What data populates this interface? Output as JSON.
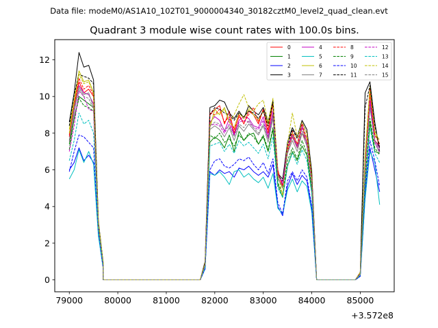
{
  "figure": {
    "suptitle": "Data file: modeM0/AS1A10_102T01_9000004340_30182cztM0_level2_quad_clean.evt"
  },
  "chart_data": {
    "type": "line",
    "title": "Quadrant 3 module wise count rates with 100.0s bins.",
    "xlabel": "",
    "ylabel": "",
    "x_offset_label": "+3.572e8",
    "xlim": [
      78700,
      85700
    ],
    "ylim": [
      -0.65,
      13.1
    ],
    "xticks": [
      79000,
      80000,
      81000,
      82000,
      83000,
      84000,
      85000
    ],
    "xtick_labels": [
      "79000",
      "80000",
      "81000",
      "82000",
      "83000",
      "84000",
      "85000"
    ],
    "yticks": [
      0,
      2,
      4,
      6,
      8,
      10,
      12
    ],
    "ytick_labels": [
      "0",
      "2",
      "4",
      "6",
      "8",
      "10",
      "12"
    ],
    "legend_position": "top-right",
    "legend_columns": 4,
    "segments": [
      {
        "x_start": 79000,
        "count": 8
      },
      {
        "x_start": 79700,
        "count": 21,
        "constant": 0
      },
      {
        "x_start": 81800,
        "count": 23
      },
      {
        "x_start": 84100,
        "count": 9,
        "constant": 0
      },
      {
        "x_start": 85000,
        "count": 5
      }
    ],
    "series": [
      {
        "name": "0",
        "color": "#ff0000",
        "dash": "solid",
        "values": [
          7.8,
          9.5,
          10.8,
          10.2,
          10.4,
          10.0,
          3.0,
          0.8,
          0.9,
          9.0,
          9.3,
          9.5,
          8.5,
          9.2,
          8.0,
          9.0,
          8.5,
          9.2,
          9.0,
          8.5,
          9.3,
          8.0,
          9.6,
          6.0,
          5.0,
          7.0,
          7.8,
          7.2,
          8.0,
          7.5,
          5.5,
          0.4,
          6.0,
          10.2,
          7.6,
          7.3
        ]
      },
      {
        "name": "1",
        "color": "#008000",
        "dash": "solid",
        "values": [
          7.4,
          8.8,
          10.0,
          9.8,
          9.6,
          9.4,
          3.0,
          0.8,
          0.8,
          7.5,
          7.8,
          7.6,
          7.2,
          7.9,
          7.0,
          8.1,
          7.6,
          7.9,
          8.0,
          7.4,
          7.8,
          7.0,
          8.2,
          5.2,
          4.5,
          6.2,
          7.0,
          6.5,
          7.3,
          6.8,
          4.8,
          0.3,
          5.0,
          8.6,
          7.0,
          6.9
        ]
      },
      {
        "name": "2",
        "color": "#0000ff",
        "dash": "solid",
        "values": [
          6.0,
          6.4,
          7.2,
          6.5,
          6.8,
          6.4,
          2.5,
          0.6,
          0.6,
          5.9,
          5.7,
          6.0,
          5.8,
          5.9,
          5.6,
          6.1,
          6.0,
          6.2,
          5.9,
          5.7,
          5.9,
          5.6,
          6.3,
          4.0,
          3.5,
          5.1,
          5.8,
          5.2,
          5.7,
          5.4,
          3.9,
          0.2,
          4.5,
          7.2,
          6.0,
          4.8
        ]
      },
      {
        "name": "3",
        "color": "#000000",
        "dash": "solid",
        "values": [
          8.6,
          10.2,
          12.4,
          11.6,
          11.7,
          10.9,
          3.2,
          0.9,
          1.0,
          9.4,
          9.5,
          9.8,
          9.7,
          9.1,
          8.8,
          9.2,
          8.8,
          9.5,
          9.2,
          9.0,
          9.4,
          8.6,
          9.8,
          5.8,
          5.5,
          7.5,
          8.3,
          7.8,
          8.7,
          8.2,
          5.9,
          0.4,
          10.2,
          10.8,
          8.6,
          7.0
        ]
      },
      {
        "name": "4",
        "color": "#c000c0",
        "dash": "solid",
        "values": [
          7.6,
          9.1,
          10.6,
          10.2,
          10.1,
          9.6,
          3.0,
          0.8,
          0.8,
          8.6,
          8.9,
          8.7,
          8.1,
          8.8,
          7.9,
          8.7,
          8.9,
          8.8,
          8.4,
          8.3,
          8.9,
          7.8,
          9.2,
          5.8,
          5.2,
          7.2,
          7.9,
          7.3,
          8.5,
          7.4,
          5.3,
          0.3,
          6.5,
          9.8,
          7.6,
          7.2
        ]
      },
      {
        "name": "5",
        "color": "#00bfbf",
        "dash": "solid",
        "values": [
          5.5,
          6.0,
          7.1,
          6.4,
          7.0,
          6.3,
          2.4,
          0.6,
          0.6,
          5.8,
          5.7,
          5.9,
          5.6,
          5.2,
          5.9,
          6.0,
          5.6,
          5.8,
          5.5,
          5.3,
          5.6,
          5.0,
          5.8,
          3.9,
          3.6,
          4.9,
          5.5,
          4.8,
          5.4,
          5.1,
          3.7,
          0.2,
          4.4,
          7.0,
          6.4,
          4.1
        ]
      },
      {
        "name": "6",
        "color": "#bfbf00",
        "dash": "solid",
        "values": [
          8.2,
          9.8,
          11.4,
          10.8,
          10.9,
          10.2,
          3.1,
          0.9,
          0.9,
          8.3,
          9.3,
          9.0,
          9.4,
          8.6,
          8.3,
          9.1,
          8.8,
          9.3,
          9.0,
          8.7,
          9.2,
          8.5,
          9.6,
          5.6,
          5.0,
          7.2,
          8.0,
          7.4,
          8.3,
          7.7,
          5.6,
          0.4,
          6.8,
          10.5,
          8.0,
          7.4
        ]
      },
      {
        "name": "7",
        "color": "#808080",
        "dash": "solid",
        "values": [
          7.6,
          9.4,
          10.5,
          10.1,
          10.2,
          9.4,
          2.9,
          0.8,
          0.8,
          8.2,
          8.4,
          8.2,
          7.8,
          8.3,
          7.6,
          8.4,
          8.1,
          8.5,
          8.2,
          7.9,
          8.4,
          7.5,
          8.8,
          5.5,
          5.1,
          6.9,
          7.6,
          7.0,
          8.0,
          7.3,
          5.3,
          0.3,
          6.2,
          9.4,
          7.5,
          6.9
        ]
      },
      {
        "name": "8",
        "color": "#ff0000",
        "dash": "dashed",
        "values": [
          7.9,
          9.6,
          11.0,
          10.4,
          10.6,
          10.1,
          3.0,
          0.8,
          0.9,
          9.1,
          9.0,
          9.3,
          8.6,
          8.9,
          8.2,
          8.9,
          8.6,
          9.0,
          9.4,
          8.6,
          9.3,
          8.2,
          9.6,
          5.9,
          5.1,
          7.1,
          8.1,
          7.4,
          8.5,
          7.7,
          5.6,
          0.4,
          6.1,
          10.4,
          7.9,
          7.4
        ]
      },
      {
        "name": "9",
        "color": "#008000",
        "dash": "dashed",
        "values": [
          7.1,
          8.8,
          9.9,
          9.5,
          9.4,
          9.2,
          2.9,
          0.8,
          0.8,
          7.9,
          7.7,
          8.0,
          7.5,
          7.7,
          7.3,
          7.9,
          7.6,
          8.0,
          7.8,
          7.4,
          7.9,
          7.1,
          8.3,
          5.3,
          4.7,
          6.5,
          7.2,
          6.6,
          7.6,
          6.9,
          5.0,
          0.3,
          5.5,
          8.8,
          7.2,
          6.8
        ]
      },
      {
        "name": "10",
        "color": "#0000ff",
        "dash": "dashed",
        "values": [
          5.9,
          7.0,
          7.9,
          7.8,
          7.5,
          7.2,
          2.6,
          0.6,
          0.6,
          6.0,
          6.5,
          6.6,
          6.2,
          6.1,
          6.3,
          6.6,
          6.5,
          6.7,
          6.3,
          6.0,
          6.4,
          5.8,
          6.6,
          4.2,
          3.6,
          5.4,
          5.9,
          5.4,
          6.0,
          5.6,
          4.0,
          0.2,
          4.8,
          7.6,
          6.5,
          5.1
        ]
      },
      {
        "name": "11",
        "color": "#000000",
        "dash": "dashed",
        "values": [
          8.4,
          10.1,
          11.2,
          11.1,
          11.0,
          10.7,
          3.1,
          0.9,
          0.9,
          9.0,
          9.4,
          9.3,
          9.1,
          9.0,
          8.7,
          9.1,
          8.9,
          9.2,
          9.1,
          8.8,
          9.2,
          8.4,
          9.7,
          5.7,
          5.4,
          7.3,
          8.2,
          7.7,
          8.6,
          8.0,
          5.8,
          0.4,
          9.4,
          10.6,
          8.4,
          7.2
        ]
      },
      {
        "name": "12",
        "color": "#c000c0",
        "dash": "dashed",
        "values": [
          7.0,
          8.4,
          10.3,
          10.0,
          9.3,
          9.2,
          2.8,
          0.8,
          0.8,
          8.4,
          8.5,
          8.4,
          8.0,
          8.5,
          7.9,
          8.6,
          8.7,
          8.6,
          8.3,
          8.2,
          8.7,
          7.7,
          9.0,
          5.7,
          5.3,
          7.3,
          7.9,
          7.2,
          8.3,
          7.4,
          5.3,
          0.3,
          6.0,
          9.6,
          7.5,
          7.0
        ]
      },
      {
        "name": "13",
        "color": "#00bfbf",
        "dash": "dashed",
        "values": [
          6.5,
          7.6,
          9.1,
          8.5,
          8.7,
          8.0,
          2.7,
          0.7,
          0.7,
          7.3,
          7.4,
          7.5,
          7.0,
          7.4,
          6.9,
          7.6,
          7.3,
          7.5,
          7.2,
          6.9,
          7.4,
          6.6,
          7.8,
          5.0,
          4.5,
          6.2,
          6.9,
          6.3,
          7.1,
          6.5,
          4.7,
          0.3,
          5.2,
          8.3,
          6.9,
          6.4
        ]
      },
      {
        "name": "14",
        "color": "#bfbf00",
        "dash": "dashed",
        "values": [
          8.0,
          9.7,
          11.2,
          10.7,
          10.8,
          10.2,
          3.1,
          0.9,
          0.9,
          8.5,
          9.0,
          9.1,
          9.3,
          8.6,
          9.0,
          9.6,
          10.1,
          9.4,
          9.2,
          9.6,
          9.8,
          8.6,
          9.9,
          5.8,
          4.6,
          7.4,
          9.1,
          7.8,
          8.6,
          8.0,
          5.6,
          0.4,
          6.7,
          10.3,
          8.1,
          7.6
        ]
      },
      {
        "name": "15",
        "color": "#808080",
        "dash": "dashed",
        "values": [
          7.5,
          9.2,
          10.4,
          10.0,
          9.9,
          9.3,
          2.9,
          0.8,
          0.8,
          8.4,
          8.6,
          8.5,
          8.2,
          8.4,
          7.8,
          8.5,
          8.3,
          8.7,
          8.3,
          8.0,
          8.5,
          7.7,
          9.0,
          5.6,
          5.0,
          7.0,
          7.8,
          7.2,
          8.1,
          7.5,
          5.3,
          0.3,
          6.1,
          9.5,
          7.6,
          7.1
        ]
      }
    ]
  }
}
